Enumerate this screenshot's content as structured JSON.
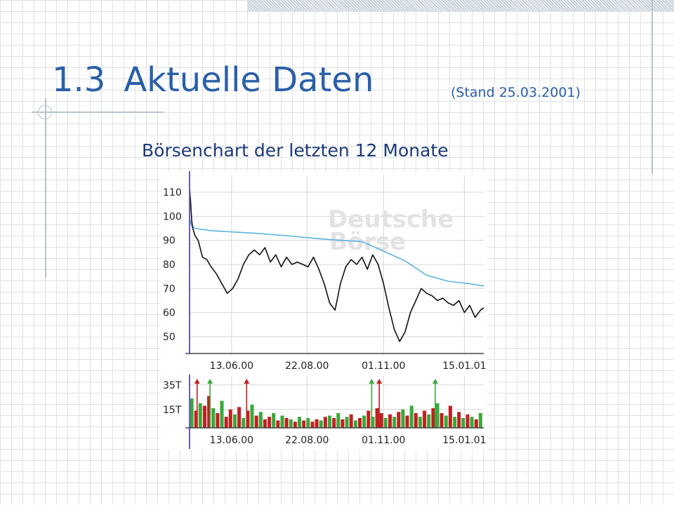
{
  "slide": {
    "number": "1.3",
    "title": "Aktuelle Daten",
    "stand": "(Stand 25.03.2001)",
    "subtitle": "Börsenchart der letzten 12 Monate"
  },
  "colors": {
    "title": "#2a5fa8",
    "subtitle": "#1c3a7a",
    "price_line": "#111111",
    "average_line": "#5ab4e0",
    "volume_up": "#3aa83a",
    "volume_down": "#c02020"
  },
  "chart_data": [
    {
      "type": "line",
      "watermark": [
        "Deutsche",
        "Börse"
      ],
      "ylim": [
        43,
        117
      ],
      "yticks": [
        110,
        100,
        90,
        80,
        70,
        60,
        50
      ],
      "xticks": [
        "13.06.00",
        "22.08.00",
        "01.11.00",
        "15.01.01"
      ],
      "x_range_days": [
        0,
        273
      ],
      "xtick_days": [
        39,
        109,
        180,
        255
      ],
      "grid": true,
      "series": [
        {
          "role": "price",
          "x": [
            0,
            1,
            2,
            3,
            5,
            8,
            12,
            16,
            20,
            25,
            30,
            35,
            40,
            45,
            50,
            55,
            60,
            65,
            70,
            75,
            80,
            85,
            90,
            95,
            100,
            105,
            110,
            115,
            120,
            125,
            130,
            135,
            140,
            145,
            150,
            155,
            160,
            165,
            170,
            175,
            180,
            185,
            190,
            195,
            200,
            205,
            210,
            215,
            220,
            225,
            230,
            235,
            240,
            245,
            250,
            255,
            260,
            265,
            270,
            273
          ],
          "values": [
            112,
            106,
            98,
            95,
            92,
            90,
            83,
            82,
            79,
            76,
            72,
            68,
            70,
            74,
            80,
            84,
            86,
            84,
            87,
            81,
            84,
            79,
            83,
            80,
            81,
            80,
            79,
            83,
            78,
            72,
            64,
            61,
            72,
            79,
            82,
            80,
            83,
            78,
            84,
            80,
            72,
            62,
            53,
            48,
            52,
            60,
            65,
            70,
            68,
            67,
            65,
            66,
            64,
            63,
            65,
            60,
            63,
            58,
            61,
            62
          ]
        },
        {
          "role": "average",
          "x": [
            0,
            2,
            5,
            20,
            40,
            60,
            80,
            100,
            120,
            140,
            160,
            180,
            200,
            220,
            240,
            260,
            273
          ],
          "values": [
            99,
            96,
            95,
            94,
            93.5,
            93,
            92.3,
            91.5,
            90.7,
            90,
            89.5,
            85.5,
            81.5,
            75.5,
            73,
            72,
            71
          ]
        }
      ]
    },
    {
      "type": "bar",
      "yticks": [
        "35T",
        "15T"
      ],
      "y_tick_values": [
        35,
        15
      ],
      "ylim": [
        0,
        40
      ],
      "xticks": [
        "13.06.00",
        "22.08.00",
        "01.11.00",
        "15.01.01"
      ],
      "x_range_days": [
        0,
        273
      ],
      "xtick_days": [
        39,
        109,
        180,
        255
      ],
      "grid": true,
      "clipped_spike_days": [
        7,
        19,
        53,
        169,
        176,
        228
      ],
      "series": [
        {
          "role": "volume",
          "x": [
            2,
            6,
            10,
            14,
            18,
            22,
            26,
            30,
            34,
            38,
            42,
            46,
            50,
            54,
            58,
            62,
            66,
            70,
            74,
            78,
            82,
            86,
            90,
            94,
            98,
            102,
            106,
            110,
            114,
            118,
            122,
            126,
            130,
            134,
            138,
            142,
            146,
            150,
            154,
            158,
            162,
            166,
            170,
            174,
            178,
            182,
            186,
            190,
            194,
            198,
            202,
            206,
            210,
            214,
            218,
            222,
            226,
            230,
            234,
            238,
            242,
            246,
            250,
            254,
            258,
            262,
            266,
            270
          ],
          "values": [
            24,
            14,
            20,
            18,
            26,
            16,
            12,
            22,
            9,
            15,
            11,
            17,
            8,
            14,
            19,
            10,
            13,
            7,
            9,
            12,
            6,
            10,
            8,
            7,
            5,
            9,
            6,
            8,
            5,
            7,
            6,
            9,
            10,
            8,
            12,
            7,
            9,
            11,
            6,
            8,
            10,
            14,
            9,
            16,
            12,
            8,
            11,
            9,
            13,
            15,
            10,
            18,
            12,
            9,
            14,
            11,
            16,
            20,
            12,
            10,
            18,
            9,
            13,
            8,
            11,
            9,
            7,
            12
          ],
          "direction": [
            "up",
            "down",
            "up",
            "down",
            "down",
            "up",
            "down",
            "up",
            "down",
            "down",
            "up",
            "down",
            "up",
            "down",
            "up",
            "down",
            "up",
            "down",
            "down",
            "up",
            "down",
            "up",
            "down",
            "up",
            "down",
            "up",
            "down",
            "up",
            "down",
            "down",
            "up",
            "down",
            "up",
            "down",
            "up",
            "down",
            "up",
            "down",
            "up",
            "down",
            "up",
            "down",
            "up",
            "down",
            "down",
            "up",
            "down",
            "up",
            "down",
            "up",
            "down",
            "up",
            "down",
            "up",
            "down",
            "up",
            "down",
            "up",
            "down",
            "up",
            "down",
            "up",
            "down",
            "up",
            "down",
            "up",
            "down",
            "up"
          ]
        }
      ]
    }
  ]
}
